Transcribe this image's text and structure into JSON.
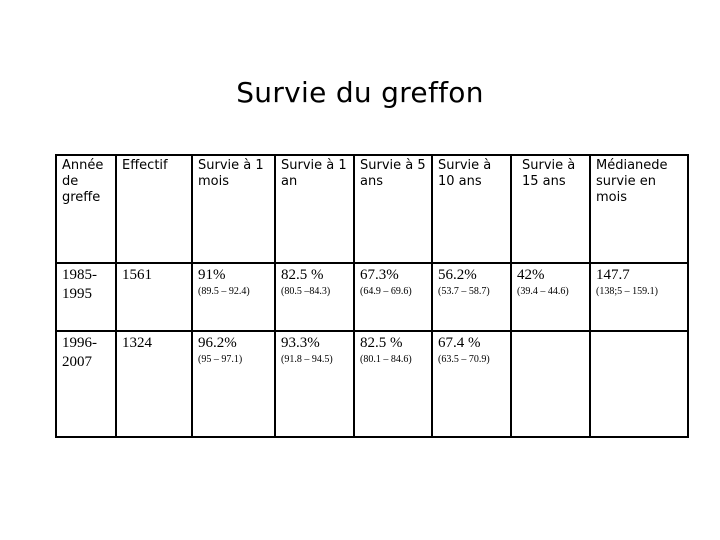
{
  "title": "Survie du greffon",
  "table": {
    "headers": [
      "Année de greffe",
      "Effectif",
      "Survie à 1 mois",
      "Survie à 1 an",
      "Survie à 5 ans",
      "Survie à 10 ans",
      "Survie à 15 ans",
      "Médianede survie en mois"
    ],
    "rows": [
      {
        "period": "1985-1995",
        "effectif": "1561",
        "cells": [
          {
            "value": "91%",
            "ci": "(89.5 – 92.4)"
          },
          {
            "value": "82.5 %",
            "ci": "(80.5 –84.3)"
          },
          {
            "value": "67.3%",
            "ci": "(64.9 – 69.6)"
          },
          {
            "value": "56.2%",
            "ci": "(53.7 – 58.7)"
          },
          {
            "value": "42%",
            "ci": "(39.4 – 44.6)"
          },
          {
            "value": "147.7",
            "ci": "(138;5 – 159.1)"
          }
        ]
      },
      {
        "period": "1996-2007",
        "effectif": "1324",
        "cells": [
          {
            "value": "96.2%",
            "ci": "(95 – 97.1)"
          },
          {
            "value": "93.3%",
            "ci": "(91.8 – 94.5)"
          },
          {
            "value": "82.5 %",
            "ci": "(80.1 – 84.6)"
          },
          {
            "value": "67.4 %",
            "ci": "(63.5 – 70.9)"
          },
          {
            "value": "",
            "ci": ""
          },
          {
            "value": "",
            "ci": ""
          }
        ]
      }
    ]
  }
}
